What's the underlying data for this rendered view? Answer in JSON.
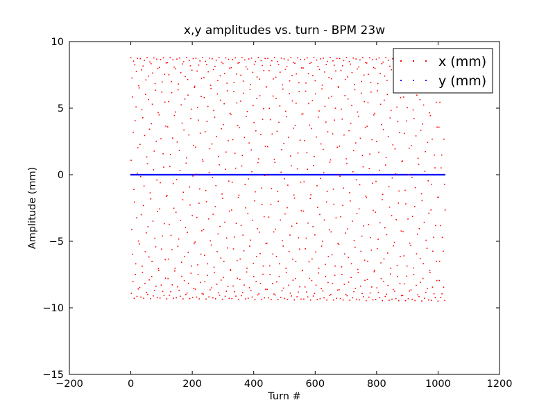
{
  "chart_data": {
    "type": "scatter",
    "title": "x,y amplitudes vs. turn - BPM 23w",
    "xlabel": "Turn #",
    "ylabel": "Amplitude (mm)",
    "xlim": [
      -200,
      1200
    ],
    "ylim": [
      -15,
      10
    ],
    "xticks": [
      -200,
      0,
      200,
      400,
      600,
      800,
      1000,
      1200
    ],
    "yticks": [
      -15,
      -10,
      -5,
      0,
      5,
      10
    ],
    "xtick_labels": [
      "−200",
      "0",
      "200",
      "400",
      "600",
      "800",
      "1000",
      "1200"
    ],
    "ytick_labels": [
      "−15",
      "−10",
      "−5",
      "0",
      "5",
      "10"
    ],
    "grid": false,
    "legend_position": "top-right",
    "turns": 1024,
    "series": [
      {
        "name": "x (mm)",
        "color": "#ff0000",
        "marker": "point",
        "model": {
          "tune": 0.2265,
          "envelope": [
            {
              "turn": 0,
              "max": 8.8,
              "min": -9.3
            },
            {
              "turn": 1024,
              "max": 8.8,
              "min": -9.5
            }
          ]
        }
      },
      {
        "name": "y (mm)",
        "color": "#0000ff",
        "marker": "point",
        "model": {
          "value": 0.0
        }
      }
    ]
  }
}
